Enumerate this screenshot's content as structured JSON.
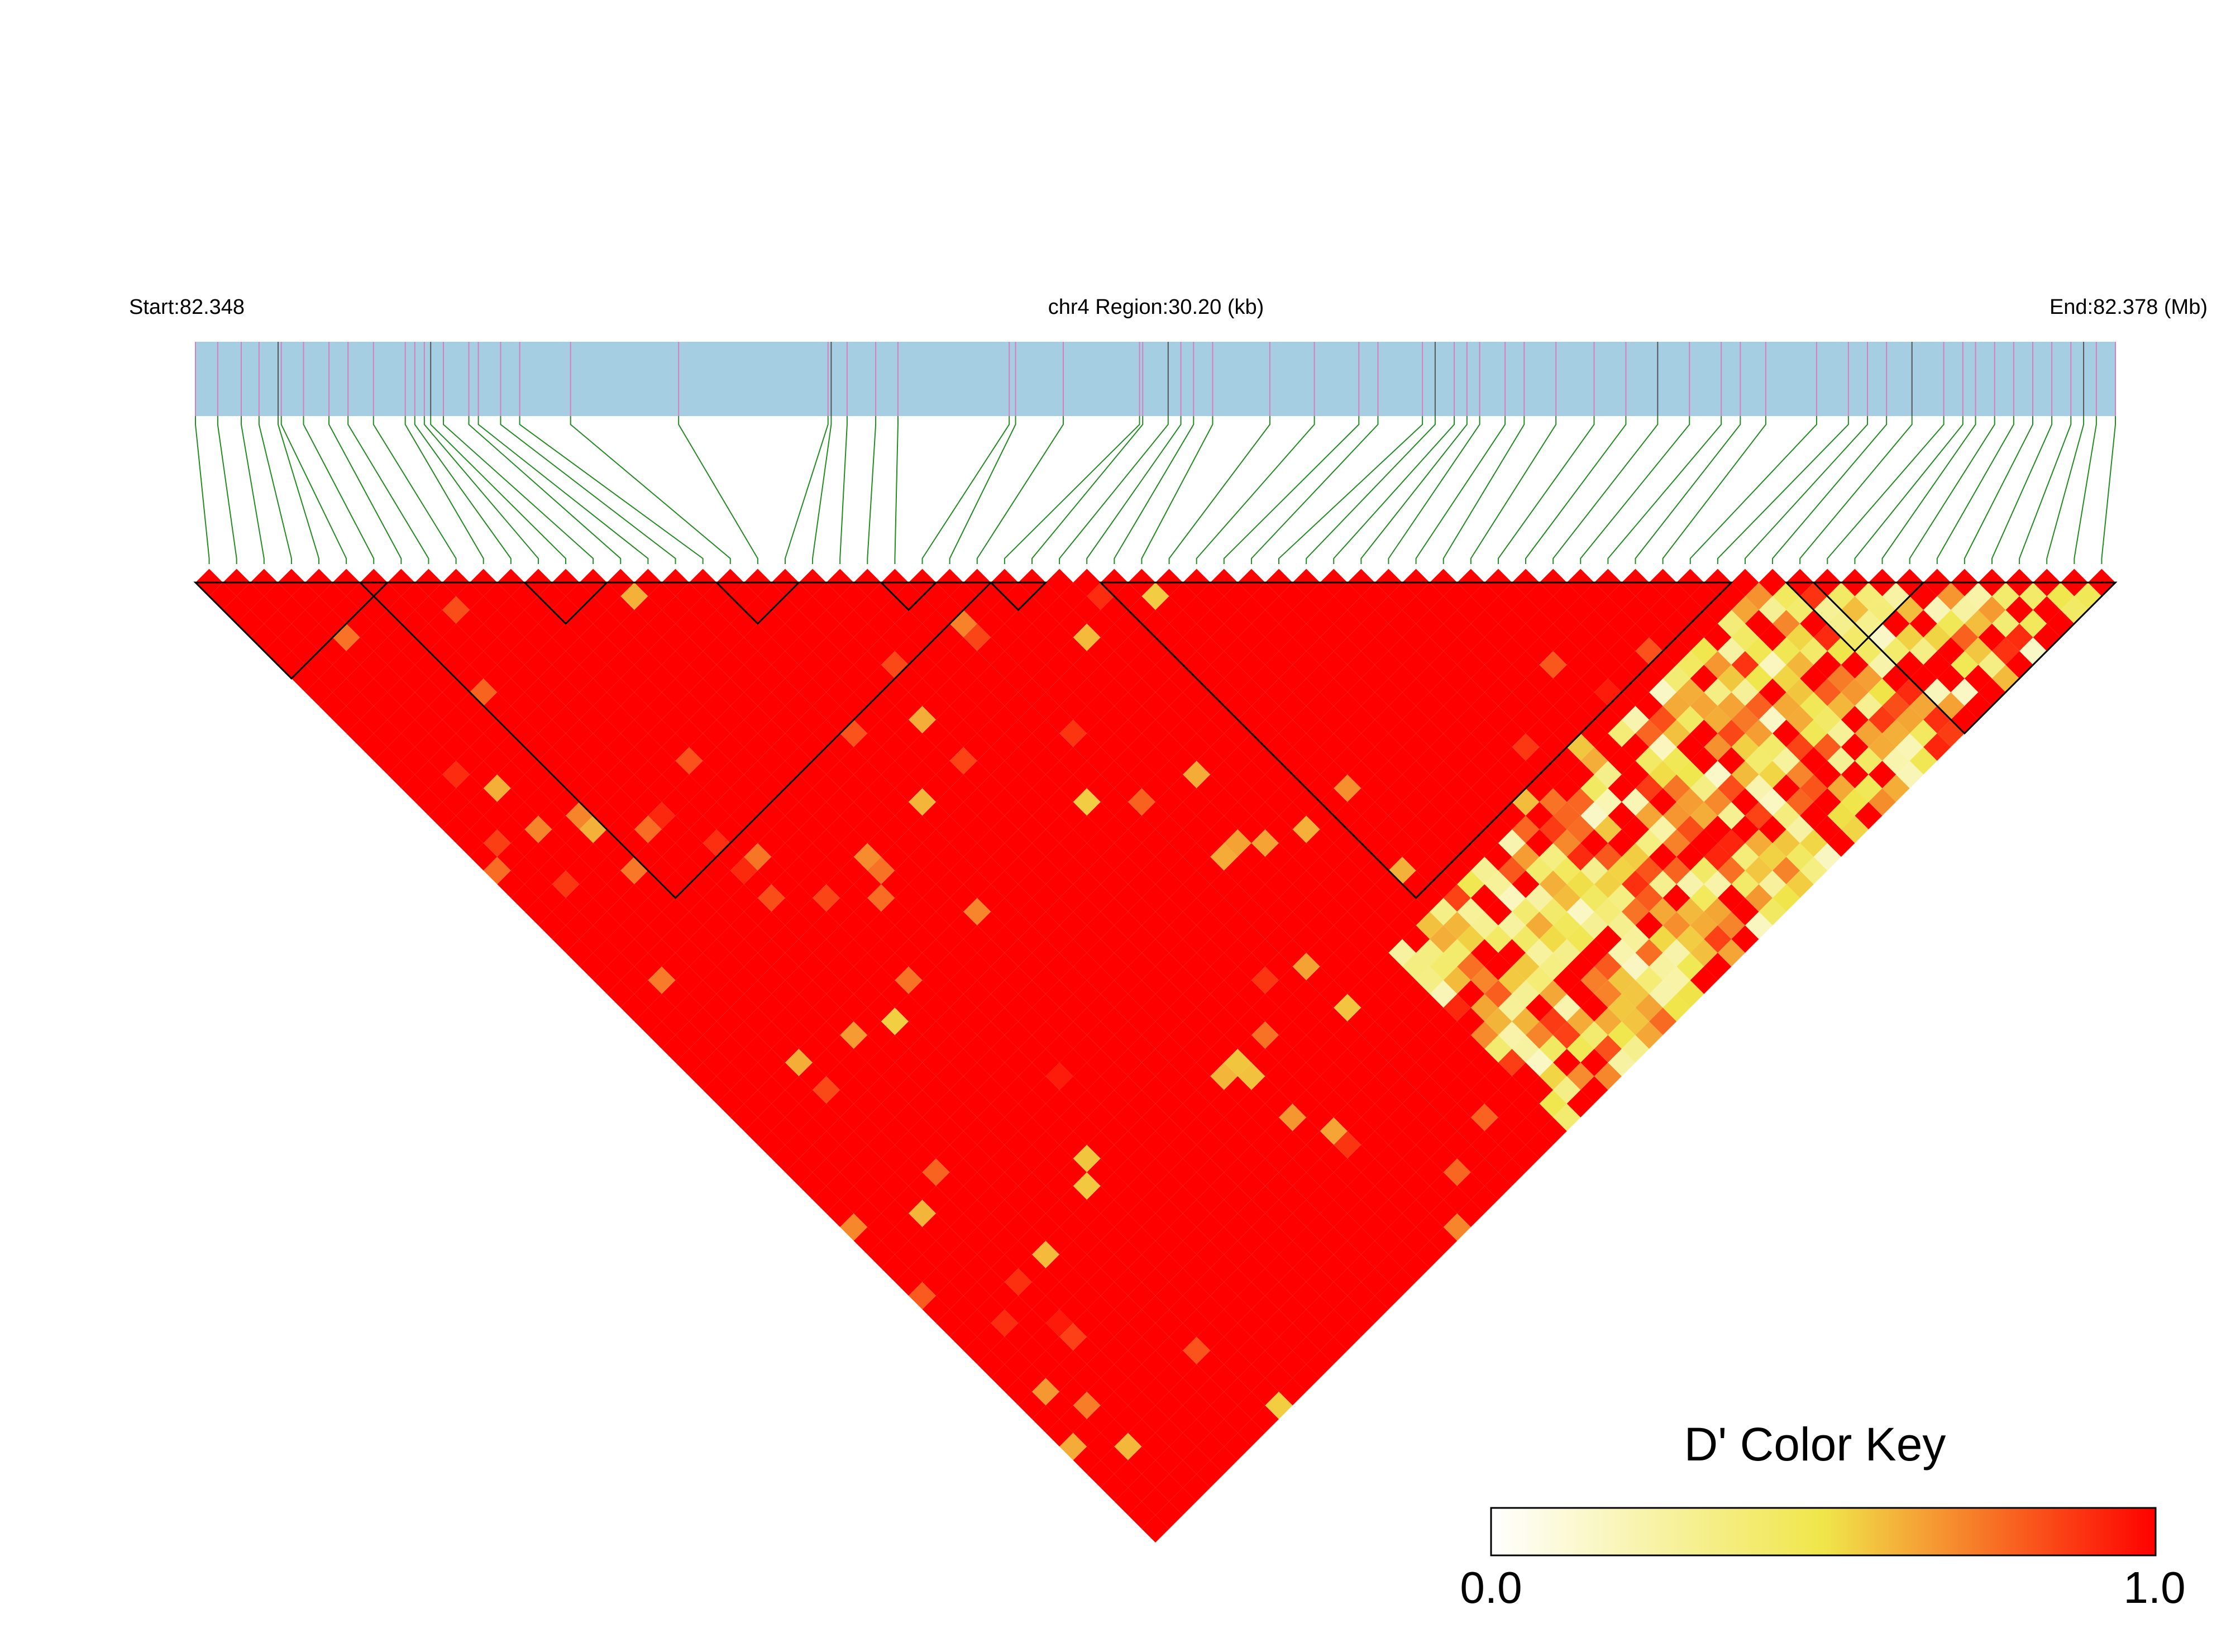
{
  "chart_data": {
    "type": "heatmap",
    "kind": "LD heatmap (triangular, pairwise D')",
    "header": {
      "start_label": "Start:82.348",
      "region_label": "chr4 Region:30.20 (kb)",
      "end_label": "End:82.378 (Mb)"
    },
    "region": {
      "chromosome": "chr4",
      "start_mb": 82.348,
      "end_mb": 82.378,
      "length_kb": 30.2
    },
    "snp_count": 70,
    "snp_positions_kb": [
      0.0,
      0.35,
      0.72,
      1.0,
      1.3,
      1.35,
      1.7,
      2.1,
      2.4,
      2.8,
      3.3,
      3.45,
      3.6,
      3.7,
      3.9,
      4.3,
      4.45,
      4.8,
      5.1,
      5.9,
      7.6,
      9.95,
      10.0,
      10.25,
      10.7,
      11.05,
      12.8,
      12.9,
      13.65,
      14.85,
      14.9,
      15.3,
      15.5,
      15.7,
      16.0,
      16.9,
      17.6,
      18.3,
      18.6,
      19.3,
      19.5,
      19.8,
      20.0,
      20.2,
      20.6,
      20.9,
      21.4,
      22.0,
      22.5,
      23.0,
      23.5,
      24.0,
      24.3,
      24.7,
      25.5,
      26.0,
      26.3,
      26.6,
      27.0,
      27.5,
      27.8,
      28.0,
      28.3,
      28.6,
      28.9,
      29.2,
      29.5,
      29.7,
      29.9,
      30.2
    ],
    "color_key": {
      "title": "D' Color Key",
      "min_label": "0.0",
      "max_label": "1.0",
      "range": [
        0,
        1
      ],
      "stops": [
        "#ffffff",
        "#f0e64a",
        "#ff0000"
      ]
    },
    "colors": {
      "track_fill": "#a6cee3",
      "snp_tick_pink": "#d67fc0",
      "snp_tick_dark": "#555555",
      "connector": "#228b22",
      "high_ld": "#ff0000"
    },
    "haplotype_blocks": [
      {
        "snp_start": 1,
        "snp_end": 7
      },
      {
        "snp_start": 7,
        "snp_end": 29
      },
      {
        "snp_start": 13,
        "snp_end": 15
      },
      {
        "snp_start": 20,
        "snp_end": 22
      },
      {
        "snp_start": 26,
        "snp_end": 27
      },
      {
        "snp_start": 30,
        "snp_end": 31
      },
      {
        "snp_start": 34,
        "snp_end": 56
      },
      {
        "snp_start": 59,
        "snp_end": 63
      },
      {
        "snp_start": 60,
        "snp_end": 70
      }
    ],
    "dprime_pattern": {
      "all_red_below_diagonal": true,
      "noisy_band": {
        "i_from": 30,
        "j_from": 57
      },
      "summary": "D' near 1.0 for most pairs among SNPs 1-56; pairs involving SNPs 57-70 with SNPs 30-56 show mixed low/medium D'."
    }
  }
}
